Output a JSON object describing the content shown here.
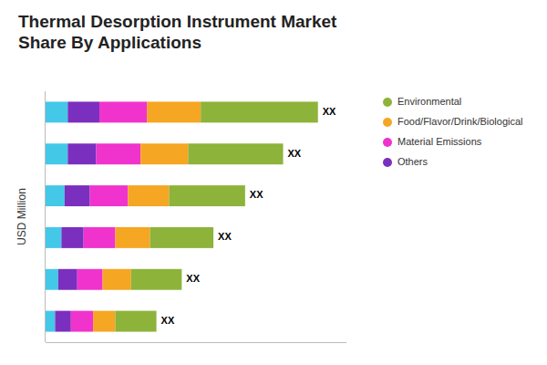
{
  "chart_data": {
    "type": "bar",
    "orientation": "horizontal",
    "stacked": true,
    "title": "Thermal Desorption Instrument Market\nShare By Applications",
    "y_label": "USD Million",
    "categories": [
      null,
      null,
      null,
      null,
      null,
      null
    ],
    "series": [
      {
        "color": "#44c8e8",
        "values": [
          0.07,
          0.07,
          0.06,
          0.05,
          0.04,
          0.03
        ]
      },
      {
        "name": "Others",
        "color": "#7b2fbe",
        "values": [
          0.1,
          0.09,
          0.08,
          0.07,
          0.06,
          0.05
        ]
      },
      {
        "name": "Material Emissions",
        "color": "#f033cc",
        "values": [
          0.15,
          0.14,
          0.12,
          0.1,
          0.08,
          0.07
        ]
      },
      {
        "name": "Food/Flavor/Drink/Biological",
        "color": "#f5a623",
        "values": [
          0.17,
          0.15,
          0.13,
          0.11,
          0.09,
          0.07
        ]
      },
      {
        "name": "Environmental",
        "color": "#8db33a",
        "values": [
          0.37,
          0.3,
          0.24,
          0.2,
          0.16,
          0.13
        ]
      }
    ],
    "annotations": [
      "XX",
      "XX",
      "XX",
      "XX",
      "XX",
      "XX"
    ],
    "xlim": [
      0,
      0.95
    ],
    "tick_labels": false,
    "grid": false,
    "legend": "upper right"
  }
}
